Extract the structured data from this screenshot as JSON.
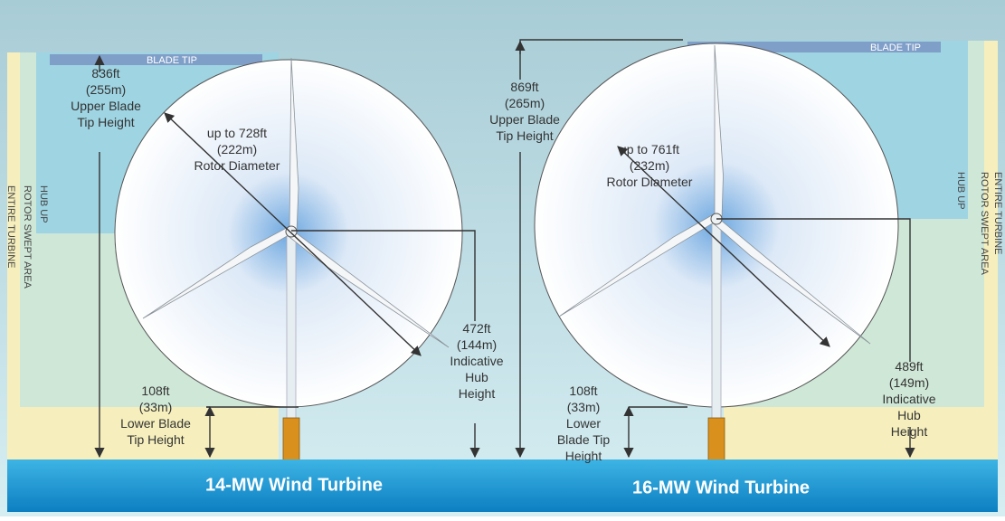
{
  "turbines": [
    {
      "title": "14-MW Wind Turbine",
      "blade_tip": "BLADE TIP",
      "side_labels": [
        "HUB UP",
        "ROTOR SWEPT AREA",
        "ENTIRE TURBINE"
      ],
      "upper_tip": [
        "836ft",
        "(255m)",
        "Upper Blade",
        "Tip Height"
      ],
      "rotor": [
        "up to 728ft",
        "(222m)",
        "Rotor Diameter"
      ],
      "lower_tip": [
        "108ft",
        "(33m)",
        "Lower Blade",
        "Tip Height"
      ],
      "hub": [
        "472ft",
        "(144m)",
        "Indicative",
        "Hub",
        "Height"
      ]
    },
    {
      "title": "16-MW Wind Turbine",
      "blade_tip": "BLADE TIP",
      "side_labels": [
        "HUB UP",
        "ROTOR SWEPT AREA",
        "ENTIRE TURBINE"
      ],
      "upper_tip": [
        "869ft",
        "(265m)",
        "Upper Blade",
        "Tip Height"
      ],
      "rotor": [
        "up to 761ft",
        "(232m)",
        "Rotor Diameter"
      ],
      "lower_tip": [
        "108ft",
        "(33m)",
        "Lower",
        "Blade Tip",
        "Height"
      ],
      "hub": [
        "489ft",
        "(149m)",
        "Indicative",
        "Hub",
        "Height"
      ]
    }
  ]
}
